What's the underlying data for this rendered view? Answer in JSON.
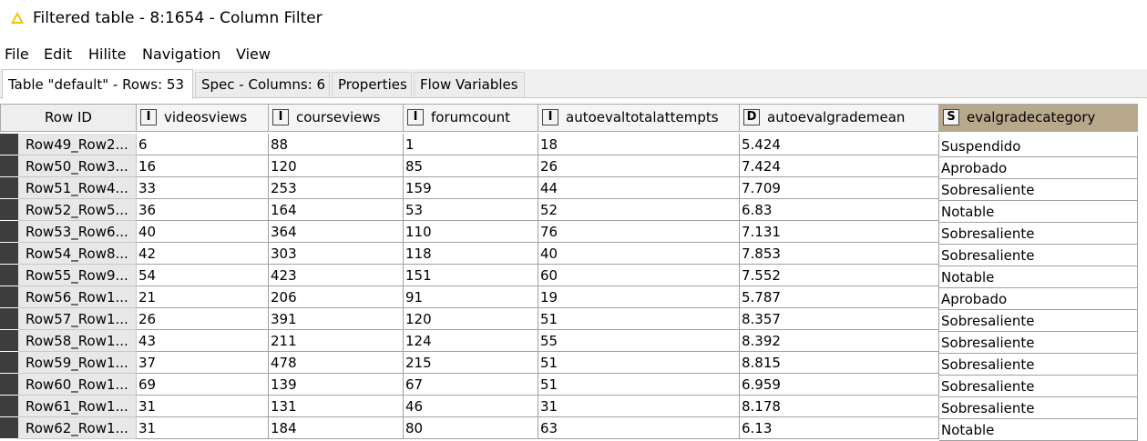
{
  "window": {
    "title": "Filtered table - 8:1654 - Column Filter",
    "title_icon": "warning-icon"
  },
  "menu": [
    "File",
    "Edit",
    "Hilite",
    "Navigation",
    "View"
  ],
  "tabs": [
    "Table \"default\" - Rows: 53",
    "Spec - Columns: 6",
    "Properties",
    "Flow Variables"
  ],
  "table": {
    "rowid_header": "Row ID",
    "columns": [
      {
        "type": "I",
        "name": "videosviews"
      },
      {
        "type": "I",
        "name": "courseviews"
      },
      {
        "type": "I",
        "name": "forumcount"
      },
      {
        "type": "I",
        "name": "autoevaltotalattempts"
      },
      {
        "type": "D",
        "name": "autoevalgrademean"
      },
      {
        "type": "S",
        "name": "evalgradecategory"
      }
    ],
    "selected_header_color": "#b8a98c",
    "rows": [
      {
        "id": "Row49_Row2...",
        "cells": [
          "6",
          "88",
          "1",
          "18",
          "5.424",
          "Suspendido"
        ]
      },
      {
        "id": "Row50_Row3...",
        "cells": [
          "16",
          "120",
          "85",
          "26",
          "7.424",
          "Aprobado"
        ]
      },
      {
        "id": "Row51_Row4...",
        "cells": [
          "33",
          "253",
          "159",
          "44",
          "7.709",
          "Sobresaliente"
        ]
      },
      {
        "id": "Row52_Row5...",
        "cells": [
          "36",
          "164",
          "53",
          "52",
          "6.83",
          "Notable"
        ]
      },
      {
        "id": "Row53_Row6...",
        "cells": [
          "40",
          "364",
          "110",
          "76",
          "7.131",
          "Sobresaliente"
        ]
      },
      {
        "id": "Row54_Row8...",
        "cells": [
          "42",
          "303",
          "118",
          "40",
          "7.853",
          "Sobresaliente"
        ]
      },
      {
        "id": "Row55_Row9...",
        "cells": [
          "54",
          "423",
          "151",
          "60",
          "7.552",
          "Notable"
        ]
      },
      {
        "id": "Row56_Row1...",
        "cells": [
          "21",
          "206",
          "91",
          "19",
          "5.787",
          "Aprobado"
        ]
      },
      {
        "id": "Row57_Row1...",
        "cells": [
          "26",
          "391",
          "120",
          "51",
          "8.357",
          "Sobresaliente"
        ]
      },
      {
        "id": "Row58_Row1...",
        "cells": [
          "43",
          "211",
          "124",
          "55",
          "8.392",
          "Sobresaliente"
        ]
      },
      {
        "id": "Row59_Row1...",
        "cells": [
          "37",
          "478",
          "215",
          "51",
          "8.815",
          "Sobresaliente"
        ]
      },
      {
        "id": "Row60_Row1...",
        "cells": [
          "69",
          "139",
          "67",
          "51",
          "6.959",
          "Sobresaliente"
        ]
      },
      {
        "id": "Row61_Row1...",
        "cells": [
          "31",
          "131",
          "46",
          "31",
          "8.178",
          "Sobresaliente"
        ]
      },
      {
        "id": "Row62_Row1...",
        "cells": [
          "31",
          "184",
          "80",
          "63",
          "6.13",
          "Notable"
        ]
      }
    ]
  }
}
